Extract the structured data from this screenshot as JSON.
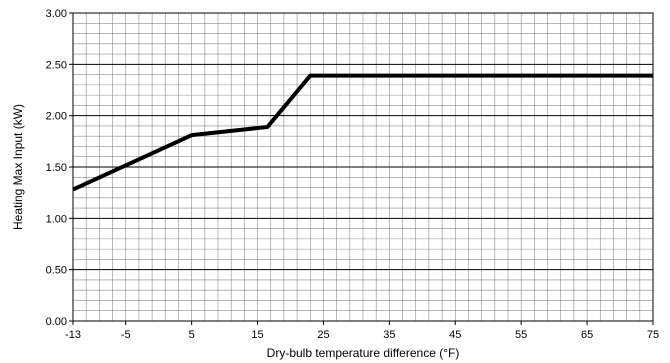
{
  "chart_data": {
    "type": "line",
    "title": "",
    "xlabel": "Dry-bulb temperature difference (°F)",
    "ylabel": "Heating Max Input (kW)",
    "xlim": [
      -13,
      75
    ],
    "ylim": [
      0,
      3
    ],
    "x_ticks": [
      -13,
      -5,
      5,
      15,
      25,
      35,
      45,
      55,
      65,
      75
    ],
    "x_tick_labels": [
      "-13",
      "-5",
      "5",
      "15",
      "25",
      "35",
      "45",
      "55",
      "65",
      "75"
    ],
    "y_ticks": [
      0,
      0.5,
      1,
      1.5,
      2,
      2.5,
      3
    ],
    "y_tick_labels": [
      "0.00",
      "0.50",
      "1.00",
      "1.50",
      "2.00",
      "2.50",
      "3.00"
    ],
    "grid": true,
    "series": [
      {
        "x": [
          -13,
          5,
          16.5,
          23,
          75
        ],
        "y": [
          1.28,
          1.81,
          1.89,
          2.39,
          2.39
        ]
      }
    ],
    "colors": {
      "line": "#000000",
      "grid_minor": "#8a8a8a",
      "grid_major": "#000000",
      "background": "#ffffff"
    }
  }
}
